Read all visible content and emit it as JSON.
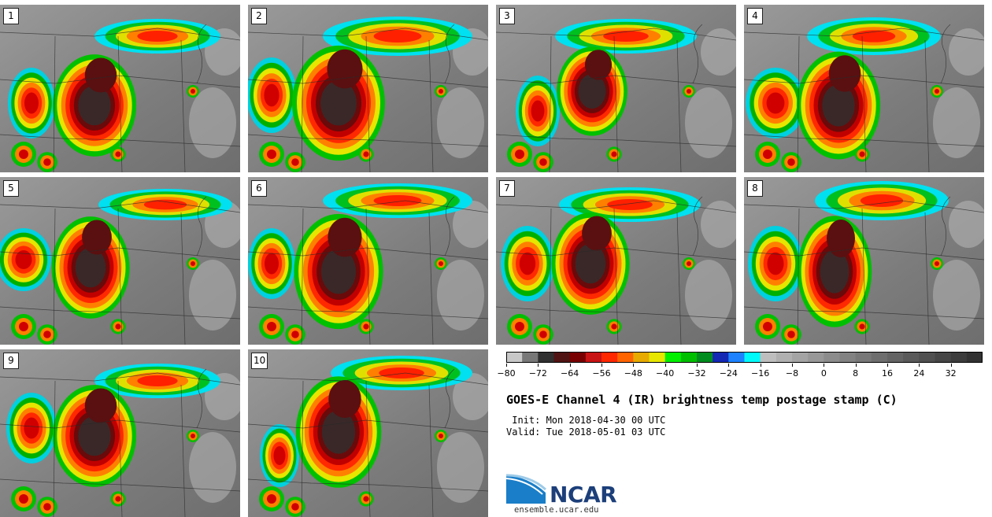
{
  "panels": [
    {
      "label": "1"
    },
    {
      "label": "2"
    },
    {
      "label": "3"
    },
    {
      "label": "4"
    },
    {
      "label": "5"
    },
    {
      "label": "6"
    },
    {
      "label": "7"
    },
    {
      "label": "8"
    },
    {
      "label": "9"
    },
    {
      "label": "10"
    }
  ],
  "colorbar": {
    "colors": [
      "#c8c8c8",
      "#787878",
      "#303030",
      "#501414",
      "#780000",
      "#c81414",
      "#ff2800",
      "#ff6400",
      "#e6aa00",
      "#e6e600",
      "#00f000",
      "#00be00",
      "#008c1e",
      "#1428b4",
      "#1e82ff",
      "#00fafa",
      "#bebebe",
      "#b0b0b0",
      "#a4a4a4",
      "#989898",
      "#8c8c8c",
      "#828282",
      "#787878",
      "#6e6e6e",
      "#646464",
      "#5a5a5a",
      "#505050",
      "#464646",
      "#3c3c3c",
      "#323232"
    ],
    "tick_labels": [
      "−80",
      "−72",
      "−64",
      "−56",
      "−48",
      "−40",
      "−32",
      "−24",
      "−16",
      "−8",
      "0",
      "8",
      "16",
      "24",
      "32"
    ]
  },
  "title": "GOES-E Channel 4 (IR) brightness temp postage stamp (C)",
  "init": " Init: Mon 2018-04-30 00 UTC",
  "valid": "Valid: Tue 2018-05-01 03 UTC",
  "logo": {
    "text": "NCAR",
    "url": "ensemble.ucar.edu"
  }
}
